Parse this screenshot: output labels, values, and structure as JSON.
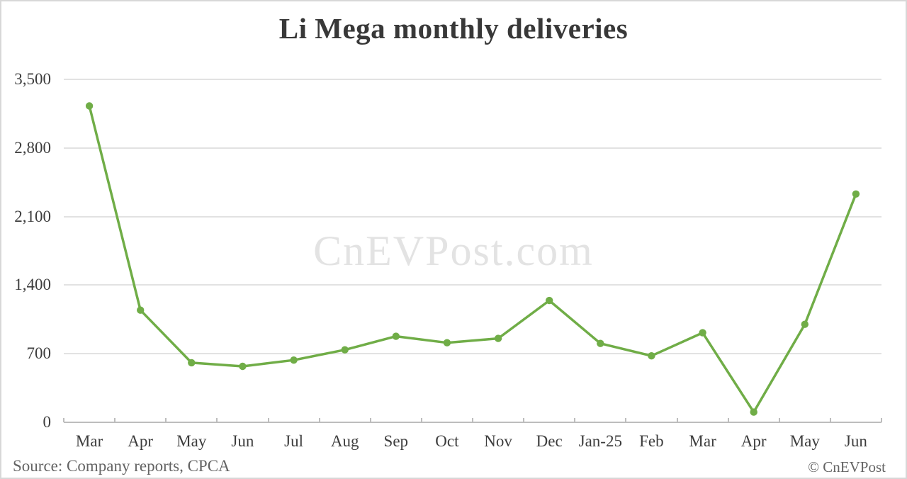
{
  "header": {
    "title": "Li Mega monthly deliveries"
  },
  "watermark": {
    "text": "CnEVPost.com"
  },
  "footer": {
    "source": "Source: Company reports, CPCA",
    "copyright": "© CnEVPost"
  },
  "colors": {
    "line": "#70ad47",
    "marker": "#70ad47",
    "gridline": "#e2e2e2",
    "axis": "#bdbdbd",
    "title_text": "#383838",
    "tick_text": "#3d3d3d",
    "footer_text": "#646464",
    "watermark_text": "#e3e3e3",
    "canvas_border": "#d8d8d8"
  },
  "chart_data": {
    "type": "line",
    "title": "Li Mega monthly deliveries",
    "series_name": "Li Mega monthly deliveries",
    "categories": [
      "Mar",
      "Apr",
      "May",
      "Jun",
      "Jul",
      "Aug",
      "Sep",
      "Oct",
      "Nov",
      "Dec",
      "Jan-25",
      "Feb",
      "Mar",
      "Apr",
      "May",
      "Jun"
    ],
    "values": [
      3229,
      1145,
      608,
      571,
      635,
      740,
      878,
      812,
      856,
      1243,
      805,
      678,
      914,
      104,
      1000,
      2330
    ],
    "xlabel": "",
    "ylabel": "",
    "ylim": [
      0,
      3500
    ],
    "ytick_values": [
      0,
      700,
      1400,
      2100,
      2800,
      3500
    ],
    "ytick_labels": [
      "0",
      "700",
      "1,400",
      "2,100",
      "2,800",
      "3,500"
    ],
    "grid": "horizontal gridlines on",
    "legend": "none",
    "marker": "circle"
  }
}
